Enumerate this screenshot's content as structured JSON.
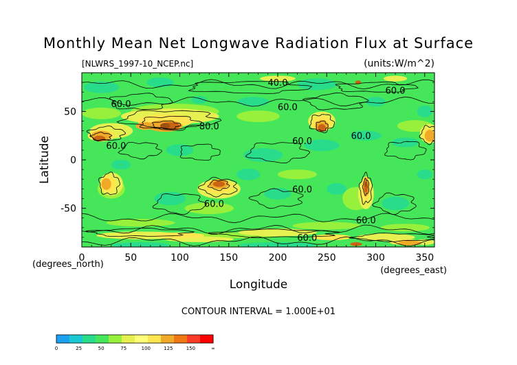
{
  "chart_data": {
    "type": "heatmap",
    "title": "Monthly Mean Net Longwave Radiation Flux at Surface",
    "subtitle_left": "[NLWRS_1997-10_NCEP.nc]",
    "subtitle_right": "(units:W/m^2)",
    "xlabel": "Longitude",
    "ylabel": "Latitude",
    "x_unit_label": "(degrees_east)",
    "y_unit_label": "(degrees_north)",
    "xlim": [
      0,
      360
    ],
    "ylim": [
      -90,
      90
    ],
    "x_ticks": [
      0,
      50,
      100,
      150,
      200,
      250,
      300,
      350
    ],
    "y_ticks": [
      -50,
      0,
      50
    ],
    "contour_interval_text": "CONTOUR INTERVAL = 1.000E+01",
    "contour_labels": [
      {
        "text": "40.0",
        "lon": 200,
        "lat": 80
      },
      {
        "text": "60.0",
        "lon": 320,
        "lat": 72
      },
      {
        "text": "60.0",
        "lon": 40,
        "lat": 58
      },
      {
        "text": "60.0",
        "lon": 210,
        "lat": 55
      },
      {
        "text": "80.0",
        "lon": 130,
        "lat": 35
      },
      {
        "text": "60.0",
        "lon": 35,
        "lat": 15
      },
      {
        "text": "60.0",
        "lon": 225,
        "lat": 20
      },
      {
        "text": "60.0",
        "lon": 285,
        "lat": 25
      },
      {
        "text": "60.0",
        "lon": 225,
        "lat": -30
      },
      {
        "text": "60.0",
        "lon": 135,
        "lat": -45
      },
      {
        "text": "60.0",
        "lon": 290,
        "lat": -62
      },
      {
        "text": "60.0",
        "lon": 230,
        "lat": -80
      }
    ],
    "colorbar": {
      "ticks": [
        "0",
        "25",
        "50",
        "75",
        "100",
        "125",
        "150",
        "∞"
      ],
      "colors": [
        "#1ea0f0",
        "#19c8d2",
        "#28dc8c",
        "#46e65a",
        "#96f03c",
        "#e6f050",
        "#ffff78",
        "#ffe650",
        "#f0aa28",
        "#f07814",
        "#ff3c28",
        "#ff0000"
      ]
    },
    "field_colors": {
      "cool": "#28dc8c",
      "base": "#46e65a",
      "mid": "#96f03c",
      "warm": "#e6f050",
      "hot": "#ffe650",
      "orange": "#f0aa28",
      "deep": "#c86414",
      "peak": "#a05010"
    }
  }
}
